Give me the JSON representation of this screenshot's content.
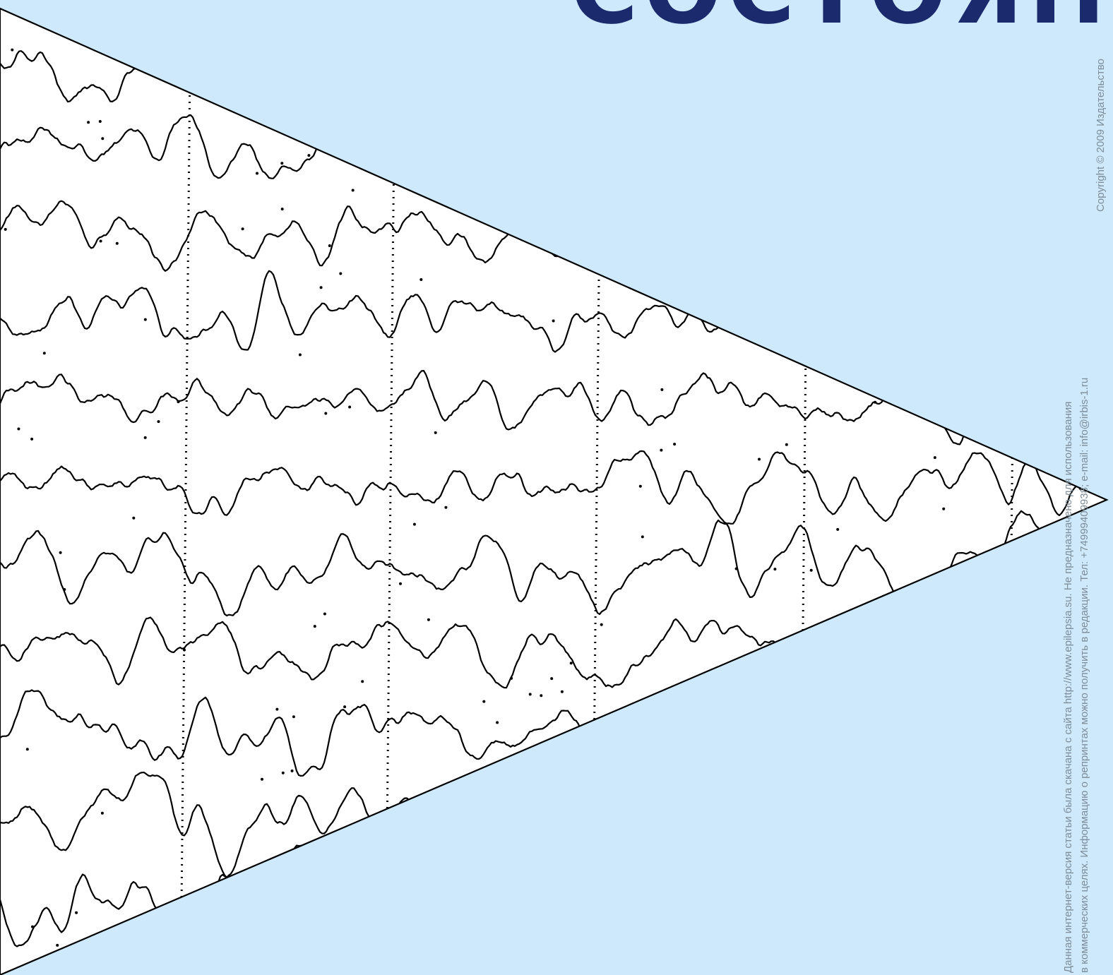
{
  "page": {
    "title_fragment": "СОСТОЯНИЯ",
    "copyright": "Copyright © 2009  Издательство",
    "notice_line1": "Данная интернет-версия статьи была скачана с сайта http://www.epilepsia.su. Не предназначено  для использования",
    "notice_line2": "в коммерческих целях. Информацию о репринтах можно получить в редакции. Тел: +74999409938; e-mail: info@irbis-1.ru"
  },
  "colors": {
    "background": "#cde9fb",
    "title": "#1a2a6c",
    "trace": "#000000",
    "watermark_text": "#7d8d99"
  },
  "figure": {
    "description_type": "eeg-traces-in-triangle",
    "channel_count": 11,
    "epoch_markers": 5
  }
}
